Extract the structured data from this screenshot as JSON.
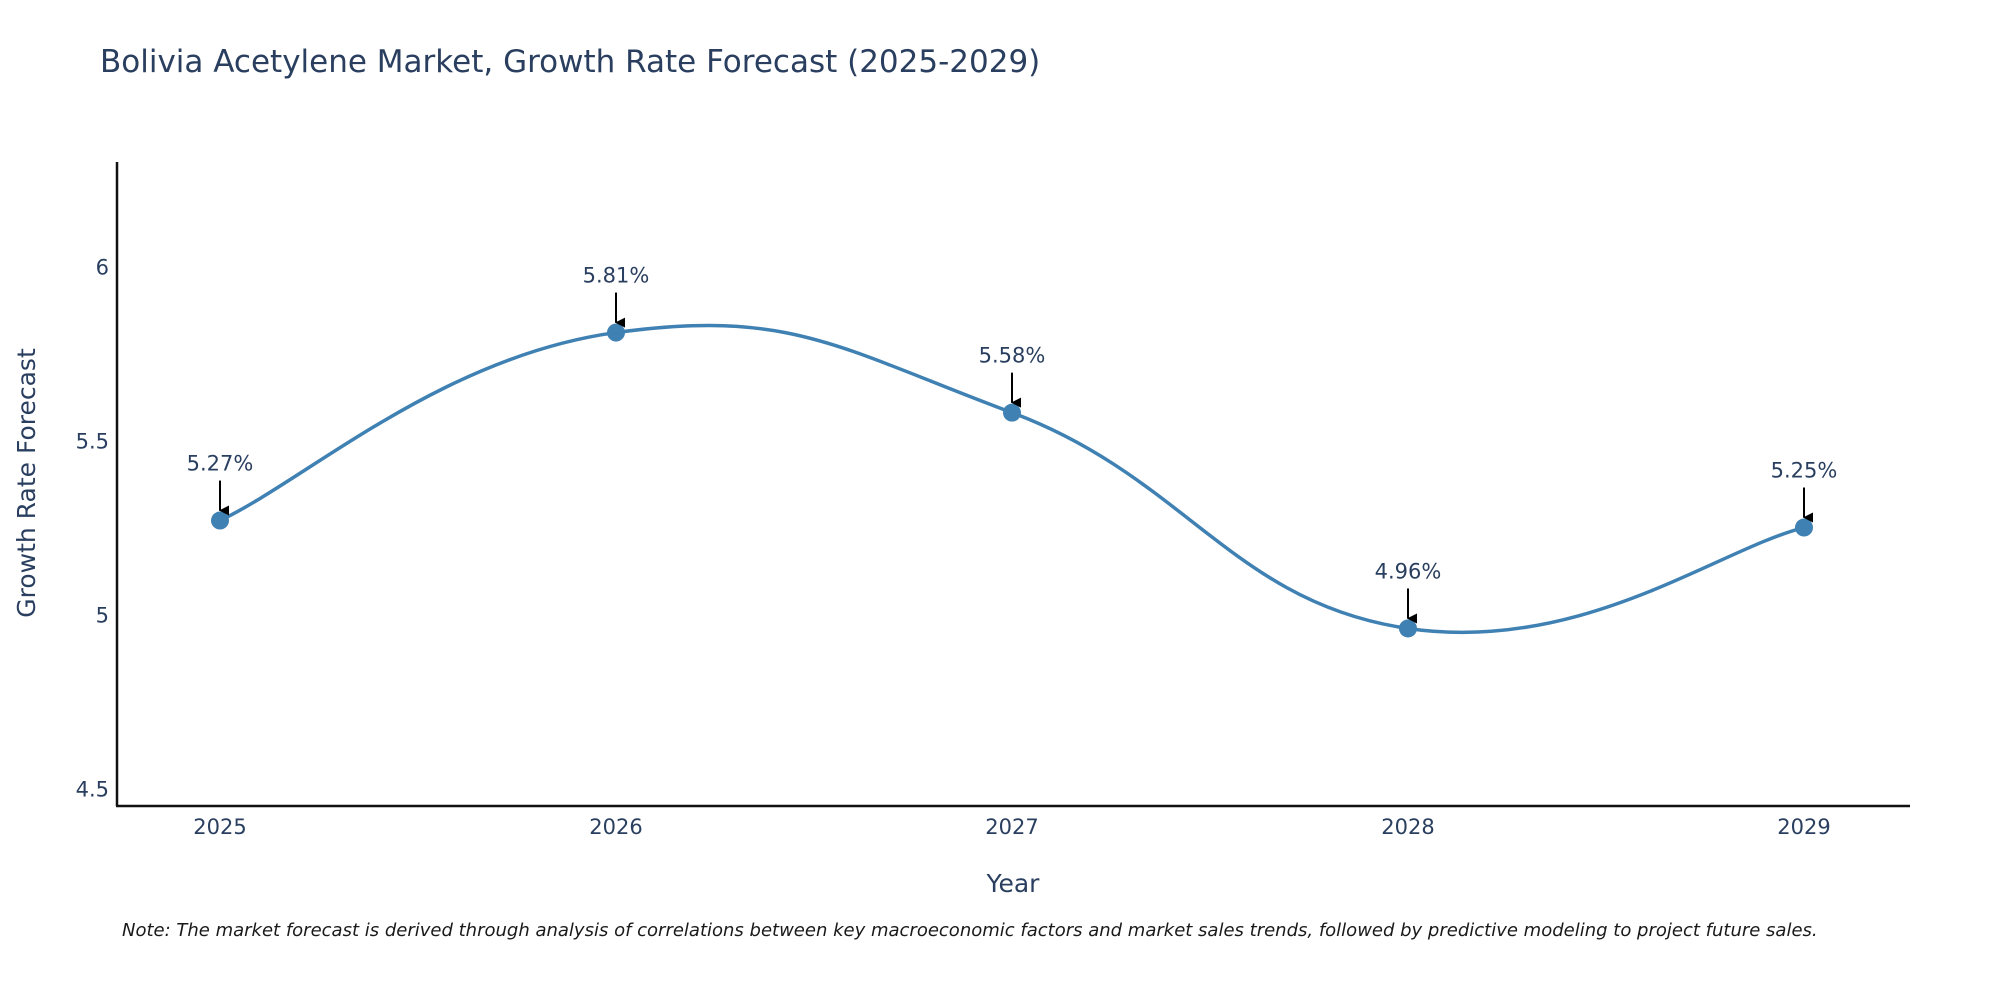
{
  "chart_data": {
    "type": "line",
    "title": "Bolivia Acetylene Market, Growth Rate Forecast (2025-2029)",
    "xlabel": "Year",
    "ylabel": "Growth Rate Forecast",
    "categories": [
      "2025",
      "2026",
      "2027",
      "2028",
      "2029"
    ],
    "values": [
      5.27,
      5.81,
      5.58,
      4.96,
      5.25
    ],
    "data_labels": [
      "5.27%",
      "5.81%",
      "5.58%",
      "4.96%",
      "5.25%"
    ],
    "ylim": [
      4.45,
      6.3
    ],
    "yticks": [
      4.5,
      5,
      5.5,
      6
    ],
    "ytick_labels": [
      "4.5",
      "5",
      "5.5",
      "6"
    ],
    "grid": false,
    "line_shape": "spline",
    "line_color": "#4081b3",
    "marker_color": "#4081b3",
    "arrow_color": "#000000",
    "note": "Note: The market forecast is derived through analysis of correlations between key macroeconomic factors and market sales trends, followed by predictive modeling to project future sales."
  }
}
